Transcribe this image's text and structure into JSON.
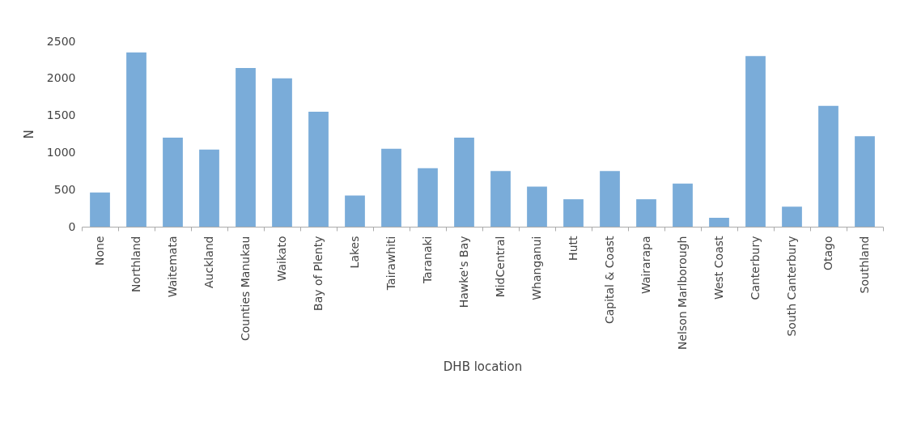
{
  "chart_data": {
    "type": "bar",
    "xlabel": "DHB location",
    "ylabel": "N",
    "categories": [
      "None",
      "Northland",
      "Waitemata",
      "Auckland",
      "Counties Manukau",
      "Waikato",
      "Bay of Plenty",
      "Lakes",
      "Tairawhiti",
      "Taranaki",
      "Hawke's Bay",
      "MidCentral",
      "Whanganui",
      "Hutt",
      "Capital & Coast",
      "Wairarapa",
      "Nelson Marlborough",
      "West Coast",
      "Canterbury",
      "South Canterbury",
      "Otago",
      "Southland"
    ],
    "values": [
      460,
      2350,
      1200,
      1040,
      2140,
      2000,
      1550,
      420,
      1050,
      790,
      1200,
      750,
      540,
      370,
      750,
      370,
      580,
      120,
      2300,
      270,
      1630,
      1220
    ],
    "color": "#7aacd9",
    "ylim": [
      0,
      2500
    ],
    "yticks": [
      0,
      500,
      1000,
      1500,
      2000,
      2500
    ],
    "grid": false
  }
}
